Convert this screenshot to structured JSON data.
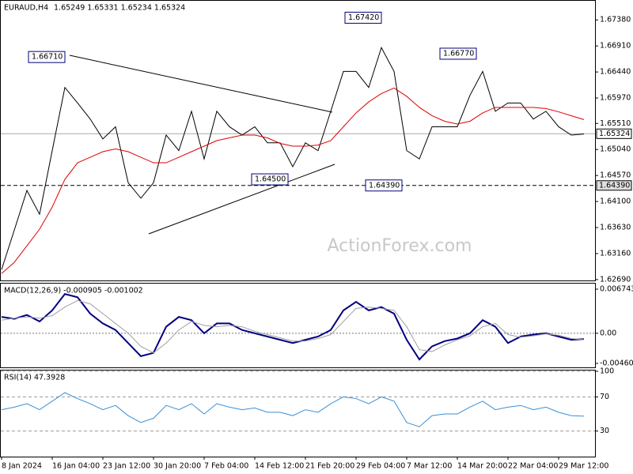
{
  "chart_data": [
    {
      "type": "line",
      "title": "EURAUD,H4",
      "subtitle": "1.65249 1.65331 1.65234 1.65324",
      "watermark": "ActionForex.com",
      "ylim": [
        1.6266,
        1.6774
      ],
      "yticks": [
        {
          "value": 1.6738,
          "label": "1.67380"
        },
        {
          "value": 1.6691,
          "label": "1.66910"
        },
        {
          "value": 1.6644,
          "label": "1.66440"
        },
        {
          "value": 1.6597,
          "label": "1.65970"
        },
        {
          "value": 1.6551,
          "label": "1.65510"
        },
        {
          "value": 1.6504,
          "label": "1.65040"
        },
        {
          "value": 1.6457,
          "label": "1.64570"
        },
        {
          "value": 1.641,
          "label": "1.64100"
        },
        {
          "value": 1.6363,
          "label": "1.63630"
        },
        {
          "value": 1.6316,
          "label": "1.63160"
        },
        {
          "value": 1.6269,
          "label": "1.62690"
        }
      ],
      "series": [
        {
          "color": "#000000",
          "values": [
            1.6287,
            1.6358,
            1.643,
            1.6387,
            1.6502,
            1.6616,
            1.6588,
            1.6559,
            1.6523,
            1.6545,
            1.6444,
            1.6416,
            1.6444,
            1.653,
            1.6502,
            1.6573,
            1.6487,
            1.6573,
            1.6545,
            1.653,
            1.6545,
            1.6516,
            1.6516,
            1.6473,
            1.6516,
            1.6502,
            1.6573,
            1.6645,
            1.6645,
            1.6616,
            1.6688,
            1.6645,
            1.6502,
            1.6487,
            1.6545,
            1.6545,
            1.6545,
            1.6602,
            1.6645,
            1.6573,
            1.6588,
            1.6588,
            1.6559,
            1.6573,
            1.6545,
            1.653,
            1.6532
          ]
        },
        {
          "color": "#e00000",
          "values": [
            1.628,
            1.63,
            1.633,
            1.636,
            1.64,
            1.645,
            1.648,
            1.649,
            1.65,
            1.6505,
            1.65,
            1.649,
            1.648,
            1.648,
            1.649,
            1.65,
            1.651,
            1.652,
            1.6525,
            1.653,
            1.653,
            1.6525,
            1.6515,
            1.651,
            1.651,
            1.6512,
            1.652,
            1.6545,
            1.657,
            1.659,
            1.6605,
            1.6615,
            1.66,
            1.658,
            1.6565,
            1.6555,
            1.655,
            1.6555,
            1.657,
            1.658,
            1.658,
            1.658,
            1.658,
            1.6578,
            1.6572,
            1.6565,
            1.6558
          ]
        }
      ],
      "levels": [
        {
          "value": 1.65324,
          "label": "1.65324",
          "style": "solid"
        },
        {
          "value": 1.6439,
          "label": "1.64390",
          "style": "dashed"
        }
      ],
      "annotations": [
        {
          "value": 1.6742,
          "label": "1.67420"
        },
        {
          "value": 1.6671,
          "label": "1.66710"
        },
        {
          "value": 1.6677,
          "label": "1.66770"
        },
        {
          "value": 1.645,
          "label": "1.64500"
        },
        {
          "value": 1.6439,
          "label": "1.64390"
        }
      ]
    },
    {
      "type": "line",
      "title": "MACD(12,26,9) -0.000905 -0.001002",
      "ylim": [
        -0.00533,
        0.00771
      ],
      "yticks": [
        0.006743,
        {
          "value": 0,
          "label": "0.00"
        },
        -0.004603
      ],
      "zero_line": true,
      "series": [
        {
          "color": "#000080",
          "values": [
            0.0025,
            0.0022,
            0.0028,
            0.0018,
            0.0035,
            0.006,
            0.0055,
            0.003,
            0.0015,
            0.0005,
            -0.0015,
            -0.0035,
            -0.003,
            0.001,
            0.0025,
            0.002,
            0,
            0.0015,
            0.0015,
            0.0005,
            0,
            -0.0005,
            -0.001,
            -0.0015,
            -0.001,
            -0.0005,
            0.0005,
            0.0035,
            0.0048,
            0.0035,
            0.004,
            0.003,
            -0.001,
            -0.004,
            -0.002,
            -0.0012,
            -0.0008,
            0,
            0.002,
            0.001,
            -0.0015,
            -0.0005,
            -0.0002,
            0,
            -0.0005,
            -0.001,
            -0.0009
          ]
        },
        {
          "color": "#a0a0a0",
          "values": [
            0.002,
            0.0023,
            0.0025,
            0.0023,
            0.0027,
            0.004,
            0.005,
            0.0045,
            0.003,
            0.0015,
            0,
            -0.002,
            -0.003,
            -0.0015,
            0.0005,
            0.0018,
            0.0012,
            0.001,
            0.0012,
            0.001,
            0.0003,
            -0.0002,
            -0.0007,
            -0.0012,
            -0.0012,
            -0.0008,
            -0.0002,
            0.0018,
            0.0038,
            0.004,
            0.0038,
            0.0035,
            0.001,
            -0.0025,
            -0.0028,
            -0.0018,
            -0.001,
            -0.0004,
            0.001,
            0.0015,
            -0.0002,
            -0.0006,
            -0.0004,
            -0.0001,
            -0.0003,
            -0.0008,
            -0.001
          ]
        }
      ]
    },
    {
      "type": "line",
      "title": "RSI(14) 47.3928",
      "ylim": [
        0,
        100
      ],
      "yticks": [
        100,
        70,
        30
      ],
      "grid": true,
      "categories": [
        "8 Jan 2024",
        null,
        null,
        null,
        "16 Jan 04:00",
        null,
        null,
        null,
        "23 Jan 12:00",
        null,
        null,
        null,
        "30 Jan 20:00",
        null,
        null,
        null,
        "7 Feb 04:00",
        null,
        null,
        null,
        "14 Feb 12:00",
        null,
        null,
        null,
        "21 Feb 20:00",
        null,
        null,
        null,
        "29 Feb 04:00",
        null,
        null,
        null,
        "7 Mar 12:00",
        null,
        null,
        null,
        "14 Mar 20:00",
        null,
        null,
        null,
        "22 Mar 04:00",
        null,
        null,
        null,
        "29 Mar 12:00",
        null,
        null
      ],
      "series": [
        {
          "color": "#3a8fd6",
          "values": [
            55,
            58,
            62,
            55,
            65,
            75,
            68,
            62,
            55,
            60,
            48,
            40,
            45,
            60,
            55,
            62,
            50,
            62,
            58,
            55,
            57,
            52,
            52,
            48,
            55,
            52,
            62,
            70,
            68,
            62,
            70,
            65,
            40,
            35,
            48,
            50,
            50,
            58,
            65,
            55,
            58,
            60,
            55,
            58,
            52,
            48,
            47.4
          ]
        }
      ]
    }
  ]
}
